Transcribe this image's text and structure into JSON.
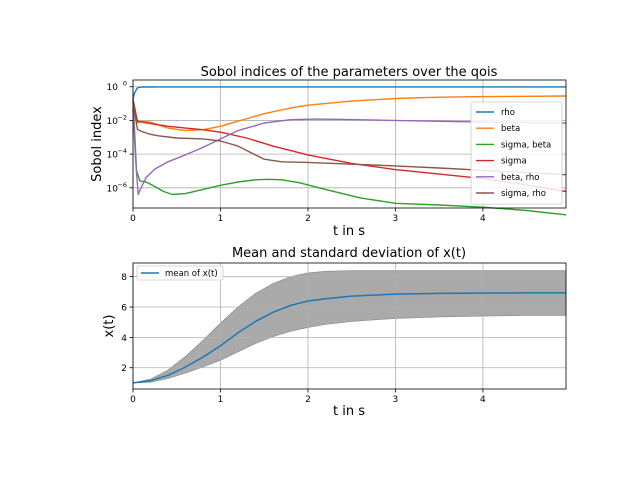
{
  "chart_data": [
    {
      "type": "line",
      "title": "Sobol indices of the parameters over the qois",
      "xlabel": "t in s",
      "ylabel": "Sobol index",
      "xlim": [
        0,
        4.95
      ],
      "ylim_log10": [
        -7.2,
        0.4
      ],
      "yscale": "log",
      "xticks": [
        "0",
        "1",
        "2",
        "3",
        "4"
      ],
      "yticks": [
        {
          "base": "10",
          "exp": "0",
          "log10": 0
        },
        {
          "base": "10",
          "exp": "−2",
          "log10": -2
        },
        {
          "base": "10",
          "exp": "−4",
          "log10": -4
        },
        {
          "base": "10",
          "exp": "−6",
          "log10": -6
        }
      ],
      "grid": true,
      "legend": "right",
      "series": [
        {
          "name": "rho",
          "color": "#1f77b4",
          "x": [
            0,
            0.02,
            0.05,
            0.1,
            0.3,
            1,
            2,
            3,
            4,
            4.95
          ],
          "y": [
            0.2,
            0.45,
            0.85,
            0.97,
            0.98,
            0.98,
            0.98,
            0.98,
            0.98,
            0.98
          ]
        },
        {
          "name": "beta",
          "color": "#ff7f0e",
          "x": [
            0,
            0.05,
            0.1,
            0.2,
            0.4,
            0.6,
            0.8,
            1,
            1.2,
            1.5,
            1.8,
            2,
            2.5,
            3,
            3.5,
            4,
            4.5,
            4.95
          ],
          "y": [
            0.1,
            0.007,
            0.009,
            0.008,
            0.0035,
            0.0025,
            0.0028,
            0.0045,
            0.009,
            0.025,
            0.055,
            0.08,
            0.14,
            0.2,
            0.24,
            0.26,
            0.27,
            0.28
          ]
        },
        {
          "name": "sigma,  beta",
          "color": "#2ca02c",
          "x": [
            0,
            0.04,
            0.08,
            0.15,
            0.25,
            0.35,
            0.45,
            0.6,
            0.8,
            1,
            1.2,
            1.4,
            1.55,
            1.7,
            1.9,
            2.2,
            2.6,
            3,
            3.5,
            4,
            4.5,
            4.95
          ],
          "y": [
            0.2,
            1e-05,
            2.5e-06,
            2.2e-06,
            1.2e-06,
            6e-07,
            4e-07,
            4.5e-07,
            8e-07,
            1.4e-06,
            2.2e-06,
            3e-06,
            3.2e-06,
            3e-06,
            2e-06,
            8e-07,
            2.5e-07,
            1.2e-07,
            9.5e-08,
            7e-08,
            4.5e-08,
            2.5e-08
          ]
        },
        {
          "name": "sigma",
          "color": "#d62728",
          "x": [
            0,
            0.05,
            0.1,
            0.2,
            0.4,
            0.6,
            0.8,
            1,
            1.3,
            1.6,
            2,
            2.5,
            3,
            3.5,
            4,
            4.5,
            4.95
          ],
          "y": [
            0.18,
            0.009,
            0.008,
            0.0065,
            0.0045,
            0.0035,
            0.0028,
            0.002,
            0.0009,
            0.0003,
            9e-05,
            2.8e-05,
            1.2e-05,
            6.5e-06,
            3.5e-06,
            1.5e-06,
            6e-07
          ]
        },
        {
          "name": "beta,  rho",
          "color": "#9467bd",
          "x": [
            0,
            0.03,
            0.06,
            0.1,
            0.15,
            0.25,
            0.4,
            0.6,
            0.8,
            1,
            1.2,
            1.5,
            1.8,
            2.1,
            2.4,
            2.8,
            3.2,
            3.6,
            4,
            4.5,
            4.95
          ],
          "y": [
            0.05,
            5e-05,
            4e-07,
            1.2e-06,
            4e-06,
            1.3e-05,
            3.5e-05,
            9e-05,
            0.00025,
            0.0008,
            0.0025,
            0.007,
            0.011,
            0.012,
            0.0115,
            0.0105,
            0.0095,
            0.0087,
            0.008,
            0.0074,
            0.007
          ]
        },
        {
          "name": "sigma,  rho",
          "color": "#8c564b",
          "x": [
            0,
            0.05,
            0.1,
            0.2,
            0.3,
            0.5,
            0.8,
            1,
            1.2,
            1.35,
            1.5,
            1.7,
            2,
            2.5,
            3,
            3.5,
            4,
            4.5,
            4.95
          ],
          "y": [
            0.12,
            0.003,
            0.0022,
            0.0015,
            0.0012,
            0.0009,
            0.0008,
            0.0006,
            0.0003,
            0.00012,
            5e-05,
            3.5e-05,
            3.2e-05,
            2.5e-05,
            2e-05,
            1.5e-05,
            1.1e-05,
            8e-06,
            6e-06
          ]
        }
      ]
    },
    {
      "type": "area",
      "title": "Mean and standard deviation of x(t)",
      "xlabel": "t in s",
      "ylabel": "x(t)",
      "xlim": [
        0,
        4.95
      ],
      "ylim": [
        0.6,
        8.9
      ],
      "xticks": [
        "0",
        "1",
        "2",
        "3",
        "4"
      ],
      "yticks": [
        "2",
        "4",
        "6",
        "8"
      ],
      "grid": true,
      "legend": "top-left",
      "mean": {
        "name": "mean of x(t)",
        "color": "#1f77b4",
        "x": [
          0,
          0.2,
          0.4,
          0.6,
          0.8,
          1,
          1.2,
          1.4,
          1.6,
          1.8,
          2,
          2.2,
          2.5,
          3,
          3.5,
          4,
          4.5,
          4.95
        ],
        "y": [
          1,
          1.15,
          1.5,
          2.05,
          2.7,
          3.45,
          4.3,
          5.05,
          5.65,
          6.1,
          6.4,
          6.55,
          6.72,
          6.85,
          6.9,
          6.92,
          6.93,
          6.93
        ]
      },
      "band": {
        "color": "#aaaaaa",
        "x": [
          0,
          0.2,
          0.4,
          0.6,
          0.8,
          1,
          1.2,
          1.4,
          1.6,
          1.8,
          2,
          2.2,
          2.5,
          3,
          3.5,
          4,
          4.5,
          4.95
        ],
        "upper": [
          1,
          1.25,
          1.85,
          2.75,
          3.8,
          4.95,
          6.0,
          6.9,
          7.55,
          8.0,
          8.25,
          8.35,
          8.4,
          8.4,
          8.4,
          8.4,
          8.4,
          8.4
        ],
        "lower": [
          1,
          1.05,
          1.3,
          1.65,
          2.05,
          2.5,
          3.05,
          3.6,
          4.05,
          4.4,
          4.65,
          4.85,
          5.05,
          5.25,
          5.35,
          5.4,
          5.45,
          5.45
        ]
      }
    }
  ]
}
